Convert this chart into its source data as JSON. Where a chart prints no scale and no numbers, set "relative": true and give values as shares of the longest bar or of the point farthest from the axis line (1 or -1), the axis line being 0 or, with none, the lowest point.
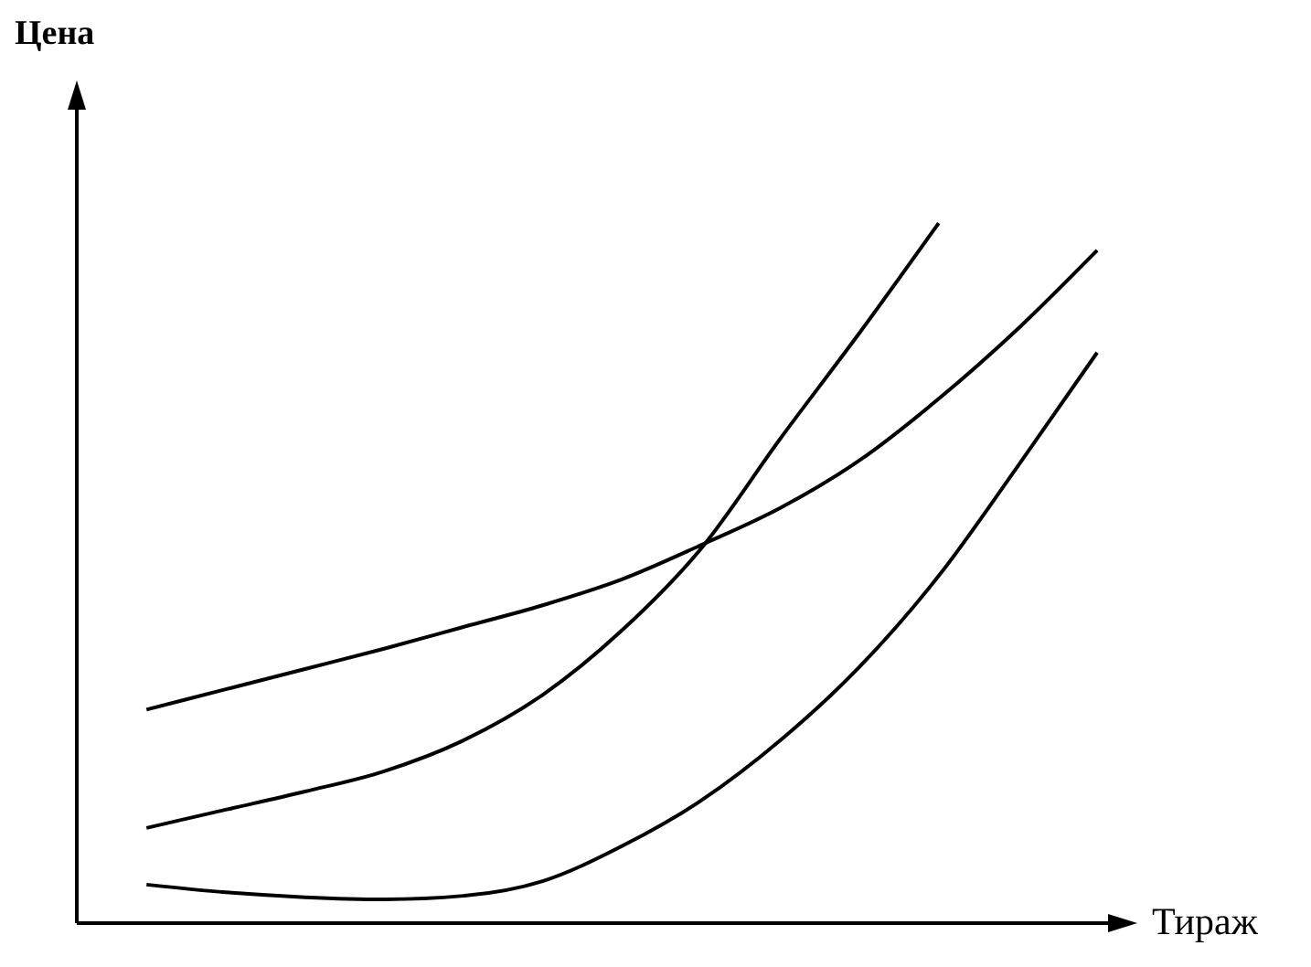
{
  "chart_data": {
    "type": "line",
    "xlabel": "Тираж",
    "ylabel": "Цена",
    "relative": true,
    "legend": false,
    "grid": false,
    "categories": [
      null,
      null,
      null,
      null,
      null,
      null,
      null,
      null,
      null,
      null,
      null,
      null,
      null
    ],
    "series": [
      {
        "color": "#000000",
        "values": [
          0.305,
          0.334,
          0.363,
          0.392,
          0.423,
          0.454,
          0.491,
          0.54,
          0.593,
          0.661,
          0.749,
          0.849,
          0.961
        ]
      },
      {
        "color": "#000000",
        "values": [
          0.136,
          0.162,
          0.188,
          0.217,
          0.261,
          0.326,
          0.418,
          0.535,
          0.692,
          0.843,
          1,
          null,
          null
        ]
      },
      {
        "color": "#000000",
        "values": [
          0.055,
          0.044,
          0.037,
          0.034,
          0.039,
          0.06,
          0.11,
          0.175,
          0.261,
          0.366,
          0.496,
          0.653,
          0.815
        ]
      }
    ]
  }
}
